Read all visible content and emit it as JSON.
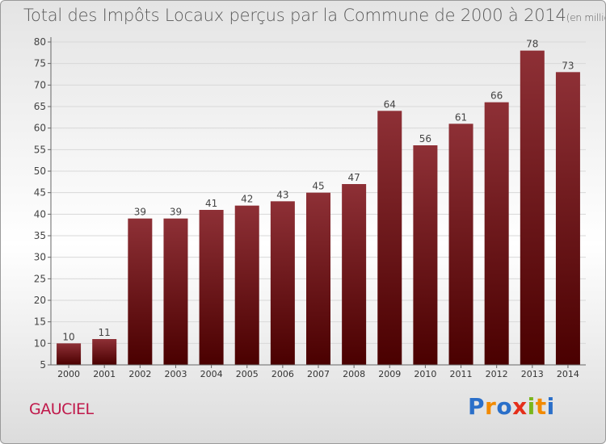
{
  "title": "Total des Impôts Locaux perçus par la Commune de 2000 à 2014",
  "title_unit": "(en milliers d'€)",
  "commune": "GAUCIEL",
  "logo": {
    "text": "Proxiti",
    "letters": [
      "P",
      "r",
      "o",
      "x",
      "i",
      "t",
      "i"
    ],
    "colors": [
      "#2a6fc9",
      "#f28a00",
      "#2a6fc9",
      "#e52e1a",
      "#7ab61c",
      "#f28a00",
      "#2a6fc9"
    ]
  },
  "colors": {
    "bar_top": "#8e3036",
    "bar_bottom": "#4a0000",
    "axis": "#666666",
    "grid": "#d8d8d8",
    "commune": "#c0184a"
  },
  "chart_data": {
    "type": "bar",
    "title": "Total des Impôts Locaux perçus par la Commune de 2000 à 2014",
    "xlabel": "",
    "ylabel": "en milliers d'€",
    "categories": [
      "2000",
      "2001",
      "2002",
      "2003",
      "2004",
      "2005",
      "2006",
      "2007",
      "2008",
      "2009",
      "2010",
      "2011",
      "2012",
      "2013",
      "2014"
    ],
    "values": [
      10,
      11,
      39,
      39,
      41,
      42,
      43,
      45,
      47,
      64,
      56,
      61,
      66,
      78,
      73
    ],
    "ylim": [
      5,
      80
    ],
    "yticks": [
      5,
      10,
      15,
      20,
      25,
      30,
      35,
      40,
      45,
      50,
      55,
      60,
      65,
      70,
      75,
      80
    ],
    "grid": true
  }
}
